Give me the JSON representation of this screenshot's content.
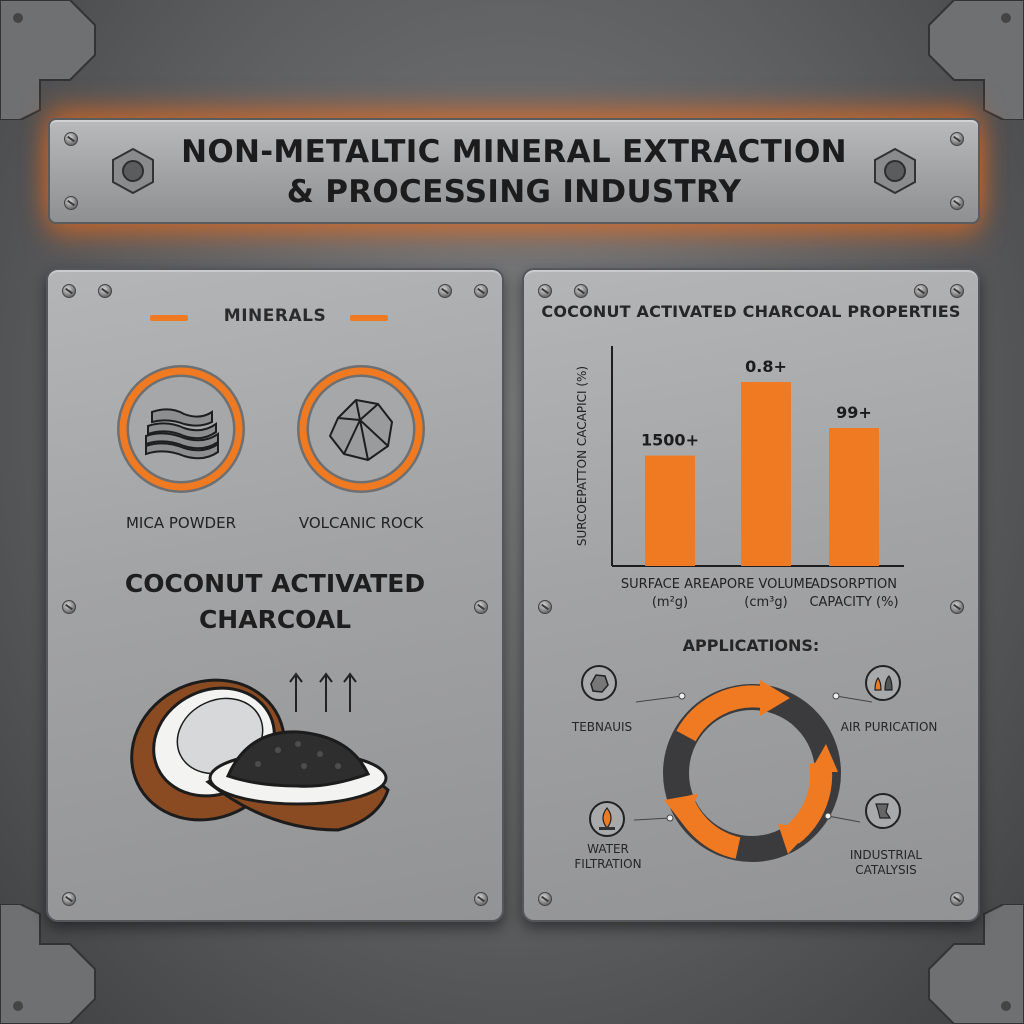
{
  "header": {
    "title_line1": "NON-METALTIC MINERAL EXTRACTION",
    "title_line2": "& PROCESSING INDUSTRY"
  },
  "left_panel": {
    "section_label": "MINERALS",
    "minerals": [
      {
        "label": "MICA POWDER",
        "icon": "mica-layers-icon"
      },
      {
        "label": "VOLCANIC ROCK",
        "icon": "rock-icon"
      }
    ],
    "product_title_line1": "COCONUT ACTIVATED",
    "product_title_line2": "CHARCOAL",
    "illustration": "coconut-with-charcoal"
  },
  "right_panel": {
    "chart_title": "COCONUT ACTIVATED CHARCOAL PROPERTIES",
    "applications_title": "APPLICATIONS:",
    "applications": [
      {
        "label": "TEBNAUIS",
        "icon": "mineral-icon"
      },
      {
        "label": "AIR PURICATION",
        "icon": "air-purification-icon"
      },
      {
        "label": "WATER FILTRATION",
        "label_line1": "WATER",
        "label_line2": "FILTRATION",
        "icon": "water-drop-icon"
      },
      {
        "label": "INDUSTRIAL CATALYSIS",
        "label_line1": "INDUSTRIAL",
        "label_line2": "CATALYSIS",
        "icon": "catalysis-icon"
      }
    ]
  },
  "chart_data": {
    "type": "bar",
    "title": "COCONUT ACTIVATED CHARCOAL PROPERTIES",
    "ylabel": "SURCOEPATTON CACAPICI (%)",
    "categories": [
      "SURFACE AREA (m²g)",
      "PORE VOLUME (cm³g)",
      "ADSORPTION CAPACITY (%)"
    ],
    "category_lines": [
      [
        "SURFACE AREA",
        "(m²g)"
      ],
      [
        "PORE VOLUME",
        "(cm³g)"
      ],
      [
        "ADSORPTION",
        "CAPACITY (%)"
      ]
    ],
    "data_labels": [
      "1500+",
      "0.8+",
      "99+"
    ],
    "relative_heights": [
      0.6,
      1.0,
      0.75
    ],
    "bar_color": "#f07a22",
    "grid": false
  },
  "colors": {
    "accent": "#f07a22",
    "panel": "#a5a6a8",
    "background": "#5e5f61",
    "ring_dark": "#3b3b3d"
  }
}
